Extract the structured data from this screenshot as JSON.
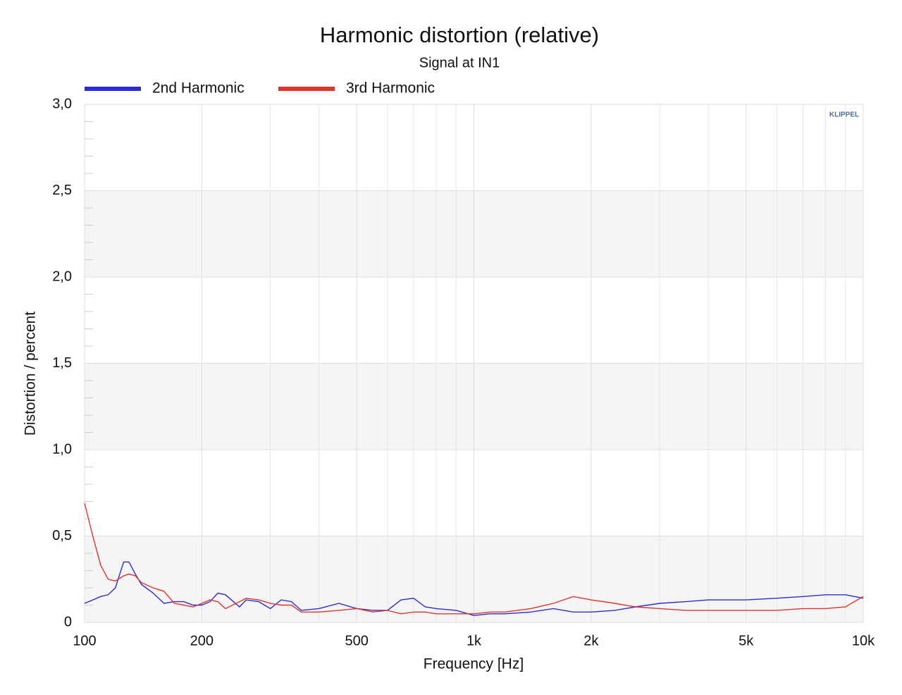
{
  "chart_data": {
    "type": "line",
    "title": "Harmonic distortion (relative)",
    "subtitle": "Signal at IN1",
    "logo": "KLIPPEL",
    "x_label": "Frequency [Hz]",
    "y_label": "Distortion / percent",
    "log_x": true,
    "grid": true,
    "shaded_bands": true,
    "x": [
      100,
      105,
      110,
      115,
      120,
      126,
      130,
      135,
      140,
      150,
      160,
      170,
      180,
      190,
      200,
      210,
      220,
      230,
      250,
      260,
      280,
      300,
      320,
      340,
      360,
      400,
      450,
      500,
      550,
      600,
      650,
      700,
      750,
      800,
      900,
      1000,
      1100,
      1200,
      1400,
      1600,
      1800,
      2000,
      2300,
      2600,
      3000,
      3500,
      4000,
      5000,
      6000,
      7000,
      8000,
      9000,
      10000
    ],
    "series": [
      {
        "name": "2nd Harmonic",
        "color": "#2b2bd9",
        "values": [
          0.11,
          0.13,
          0.15,
          0.16,
          0.2,
          0.35,
          0.35,
          0.28,
          0.22,
          0.17,
          0.11,
          0.12,
          0.12,
          0.1,
          0.1,
          0.12,
          0.17,
          0.16,
          0.09,
          0.13,
          0.12,
          0.08,
          0.13,
          0.12,
          0.07,
          0.08,
          0.11,
          0.08,
          0.07,
          0.07,
          0.13,
          0.14,
          0.09,
          0.08,
          0.07,
          0.04,
          0.05,
          0.05,
          0.06,
          0.08,
          0.06,
          0.06,
          0.07,
          0.09,
          0.11,
          0.12,
          0.13,
          0.13,
          0.14,
          0.15,
          0.16,
          0.16,
          0.14
        ]
      },
      {
        "name": "3rd Harmonic",
        "color": "#e0342a",
        "values": [
          0.69,
          0.5,
          0.33,
          0.25,
          0.24,
          0.27,
          0.28,
          0.27,
          0.23,
          0.2,
          0.18,
          0.11,
          0.1,
          0.09,
          0.11,
          0.13,
          0.12,
          0.08,
          0.12,
          0.14,
          0.13,
          0.11,
          0.1,
          0.1,
          0.06,
          0.06,
          0.07,
          0.08,
          0.06,
          0.07,
          0.05,
          0.06,
          0.06,
          0.05,
          0.05,
          0.05,
          0.06,
          0.06,
          0.08,
          0.11,
          0.15,
          0.13,
          0.11,
          0.09,
          0.08,
          0.07,
          0.07,
          0.07,
          0.07,
          0.08,
          0.08,
          0.09,
          0.15
        ]
      }
    ],
    "xlim": [
      100,
      10000
    ],
    "xticks": [
      100,
      200,
      500,
      {
        "value": 1000,
        "label": "1k"
      },
      {
        "value": 2000,
        "label": "2k"
      },
      {
        "value": 5000,
        "label": "5k"
      },
      {
        "value": 10000,
        "label": "10k"
      }
    ],
    "xminorticks": [
      300,
      400,
      600,
      700,
      800,
      900,
      3000,
      4000,
      6000,
      7000,
      8000,
      9000
    ],
    "ylim": [
      0,
      3
    ],
    "yticks": [
      0,
      {
        "value": 0.5,
        "label": "0,5"
      },
      {
        "value": 1,
        "label": "1,0"
      },
      {
        "value": 1.5,
        "label": "1,5"
      },
      {
        "value": 2,
        "label": "2,0"
      },
      {
        "value": 2.5,
        "label": "2,5"
      },
      {
        "value": 3,
        "label": "3,0"
      }
    ],
    "yminorticks": [
      0.1,
      0.2,
      0.3,
      0.4,
      0.6,
      0.7,
      0.8,
      0.9,
      1.1,
      1.2,
      1.3,
      1.4,
      1.6,
      1.7,
      1.8,
      1.9,
      2.1,
      2.2,
      2.3,
      2.4,
      2.6,
      2.7,
      2.8,
      2.9
    ]
  }
}
